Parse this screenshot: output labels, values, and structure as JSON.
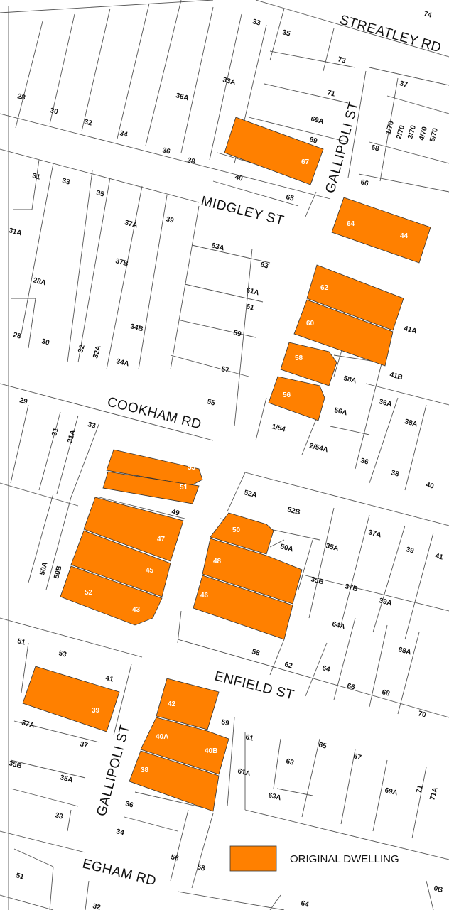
{
  "streets": {
    "streatley": "STREATLEY RD",
    "gallipoli_north": "GALLIPOLI ST",
    "midgley": "MIDGLEY ST",
    "cookham": "COOKHAM RD",
    "enfield": "ENFIELD ST",
    "gallipoli_south": "GALLIPOLI ST",
    "egham": "EGHAM RD"
  },
  "legend": {
    "label": "ORIGINAL DWELLING",
    "color": "#FF8000"
  },
  "colors": {
    "original_dwelling": "#FF8000",
    "lot_line": "#555555",
    "road": "#ffffff"
  },
  "original_dwelling_lots": [
    "67",
    "64",
    "44",
    "62",
    "60",
    "58",
    "56",
    "53",
    "51",
    "47",
    "45",
    "52",
    "43",
    "50",
    "48",
    "46",
    "39",
    "42",
    "40A",
    "40B",
    "38"
  ],
  "lot_numbers": [
    "74",
    "33",
    "35",
    "73",
    "71",
    "69A",
    "69",
    "33A",
    "36A",
    "28",
    "30",
    "32",
    "34",
    "36",
    "38",
    "40",
    "65",
    "37",
    "1/70",
    "2/70",
    "3/70",
    "4/70",
    "5/70",
    "68",
    "66",
    "31",
    "33",
    "35",
    "37A",
    "39",
    "31A",
    "63A",
    "63",
    "37B",
    "28A",
    "61A",
    "61",
    "34B",
    "59",
    "28",
    "30",
    "32",
    "32A",
    "34A",
    "57",
    "55",
    "41A",
    "41B",
    "58A",
    "36A",
    "56A",
    "29",
    "31",
    "31A",
    "33",
    "1/54",
    "2/54A",
    "36",
    "38A",
    "38",
    "40",
    "52A",
    "52B",
    "49",
    "50A",
    "35A",
    "37A",
    "39",
    "41",
    "50A",
    "50B",
    "35B",
    "37B",
    "39A",
    "64A",
    "68A",
    "58",
    "62",
    "64",
    "66",
    "68",
    "70",
    "51",
    "53",
    "41",
    "37A",
    "37",
    "35B",
    "35A",
    "33",
    "59",
    "61",
    "61A",
    "63",
    "63A",
    "65",
    "67",
    "69A",
    "71",
    "71A",
    "36",
    "34",
    "56",
    "58",
    "51",
    "32",
    "64",
    "0B"
  ]
}
